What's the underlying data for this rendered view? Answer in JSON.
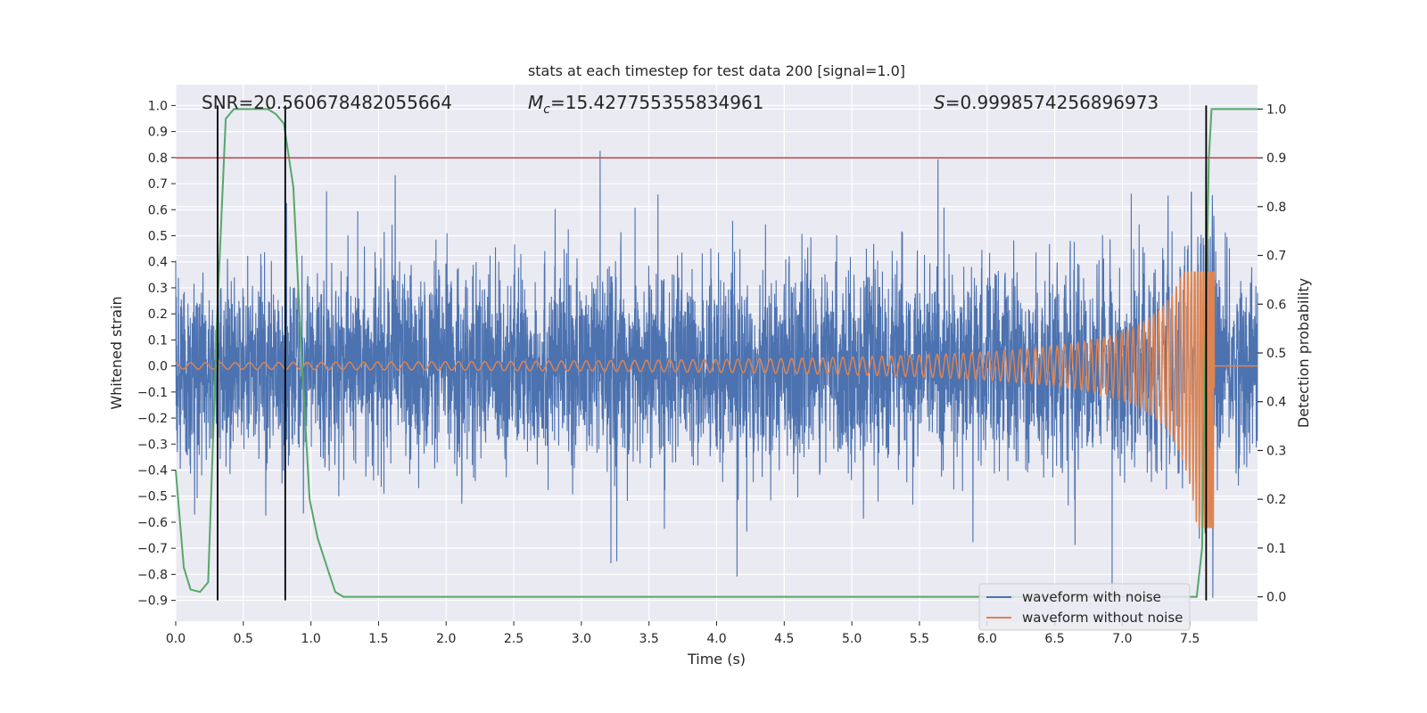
{
  "chart_data": {
    "type": "line",
    "title": "stats at each timestep for test data 200 [signal=1.0]",
    "xlabel": "Time (s)",
    "ylabel": "Whitened strain",
    "y2label": "Detection probability",
    "xlim": [
      0.0,
      8.0
    ],
    "ylim": [
      -0.98,
      1.08
    ],
    "y2lim": [
      -0.05,
      1.05
    ],
    "xticks": [
      0.0,
      0.5,
      1.0,
      1.5,
      2.0,
      2.5,
      3.0,
      3.5,
      4.0,
      4.5,
      5.0,
      5.5,
      6.0,
      6.5,
      7.0,
      7.5
    ],
    "xtick_labels": [
      "0.0",
      "0.5",
      "1.0",
      "1.5",
      "2.0",
      "2.5",
      "3.0",
      "3.5",
      "4.0",
      "4.5",
      "5.0",
      "5.5",
      "6.0",
      "6.5",
      "7.0",
      "7.5"
    ],
    "yticks": [
      1.0,
      0.9,
      0.8,
      0.7,
      0.6,
      0.5,
      0.4,
      0.3,
      0.2,
      0.1,
      0.0,
      -0.1,
      -0.2,
      -0.3,
      -0.4,
      -0.5,
      -0.6,
      -0.7,
      -0.8,
      -0.9
    ],
    "ytick_labels": [
      "1.0",
      "0.9",
      "0.8",
      "0.7",
      "0.6",
      "0.5",
      "0.4",
      "0.3",
      "0.2",
      "0.1",
      "0.0",
      "−0.1",
      "−0.2",
      "−0.3",
      "−0.4",
      "−0.5",
      "−0.6",
      "−0.7",
      "−0.8",
      "−0.9"
    ],
    "y2ticks": [
      1.0,
      0.9,
      0.8,
      0.7,
      0.6,
      0.5,
      0.4,
      0.3,
      0.2,
      0.1,
      0.0
    ],
    "y2tick_labels": [
      "1.0",
      "0.9",
      "0.8",
      "0.7",
      "0.6",
      "0.5",
      "0.4",
      "0.3",
      "0.2",
      "0.1",
      "0.0"
    ],
    "annotations": {
      "snr": "SNR=20.560678482055664",
      "mc_symbol": "M",
      "mc_sub": "c",
      "mc_value": "=15.427755355834961",
      "s_symbol": "S",
      "s_value": "=0.9998574256896973"
    },
    "threshold": {
      "axis": "y2",
      "value": 0.9,
      "color": "#c44e52"
    },
    "vlines": [
      0.31,
      0.81,
      7.62
    ],
    "series": [
      {
        "name": "waveform with noise",
        "axis": "y",
        "color": "#4c72b0",
        "noise_amplitude": 0.2,
        "range": [
          -0.89,
          0.88
        ]
      },
      {
        "name": "waveform without noise",
        "axis": "y",
        "color": "#dd8452",
        "chirp": {
          "f0": 9.0,
          "t_c": 7.7,
          "amp0": 0.012,
          "t_end": 7.68
        },
        "range": [
          -0.62,
          0.36
        ]
      },
      {
        "name": "detection probability",
        "axis": "y2",
        "color": "#55a868",
        "x": [
          0.0,
          0.06,
          0.11,
          0.18,
          0.24,
          0.31,
          0.37,
          0.43,
          0.55,
          0.68,
          0.74,
          0.8,
          0.87,
          0.93,
          0.99,
          1.05,
          1.12,
          1.18,
          1.24,
          1.3,
          7.0,
          7.55,
          7.59,
          7.62,
          7.64,
          7.66,
          7.68,
          7.74,
          8.0
        ],
        "values": [
          0.26,
          0.06,
          0.015,
          0.01,
          0.03,
          0.6,
          0.98,
          1.0,
          1.0,
          1.0,
          0.99,
          0.97,
          0.84,
          0.5,
          0.2,
          0.12,
          0.06,
          0.01,
          0.0,
          0.0,
          0.0,
          0.0,
          0.1,
          0.6,
          0.9,
          1.0,
          1.0,
          1.0,
          1.0
        ]
      }
    ],
    "legend": {
      "placement": "bottom-right",
      "entries": [
        {
          "label": "waveform with noise",
          "color": "#4c72b0"
        },
        {
          "label": "waveform without noise",
          "color": "#dd8452"
        }
      ]
    }
  }
}
